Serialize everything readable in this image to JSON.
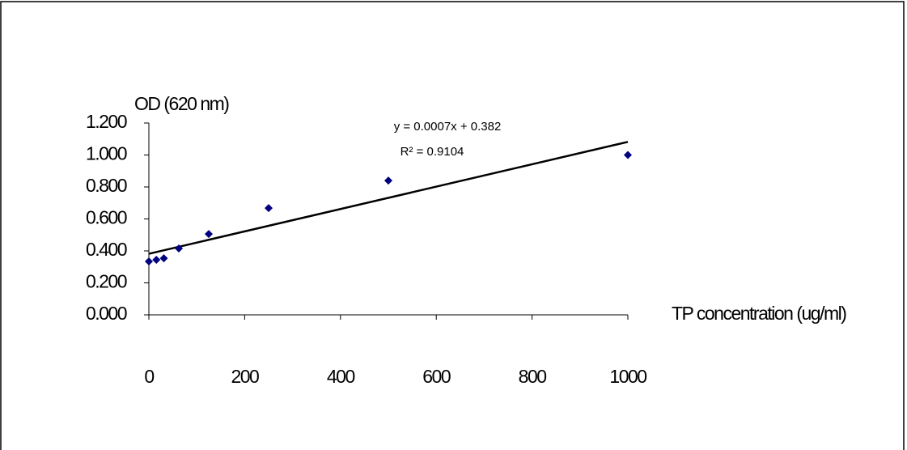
{
  "chart_data": {
    "type": "scatter",
    "x_label": "TP concentration (ug/ml)",
    "y_label": "OD (620 nm)",
    "x": [
      0,
      15.625,
      31.25,
      62.5,
      125,
      250,
      500,
      1000
    ],
    "series": [
      {
        "color": "#000080",
        "values": [
          0.334,
          0.344,
          0.354,
          0.415,
          0.506,
          0.668,
          0.84,
          1.0
        ]
      }
    ],
    "trendline": {
      "slope": 0.0007,
      "intercept": 0.382,
      "color": "#000000",
      "equation": "y = 0.0007x + 0.382",
      "r_squared": "R² = 0.9104"
    },
    "xlim": [
      0,
      1000
    ],
    "ylim": [
      0,
      1.2
    ],
    "xticks": [
      0,
      200,
      400,
      600,
      800,
      1000
    ],
    "yticks": [
      {
        "value": 0,
        "label": "0.000"
      },
      {
        "value": 0.2,
        "label": "0.200"
      },
      {
        "value": 0.4,
        "label": "0.400"
      },
      {
        "value": 0.6,
        "label": "0.600"
      },
      {
        "value": 0.8,
        "label": "0.800"
      },
      {
        "value": 1.0,
        "label": "1.000"
      },
      {
        "value": 1.2,
        "label": "1.200"
      }
    ]
  }
}
